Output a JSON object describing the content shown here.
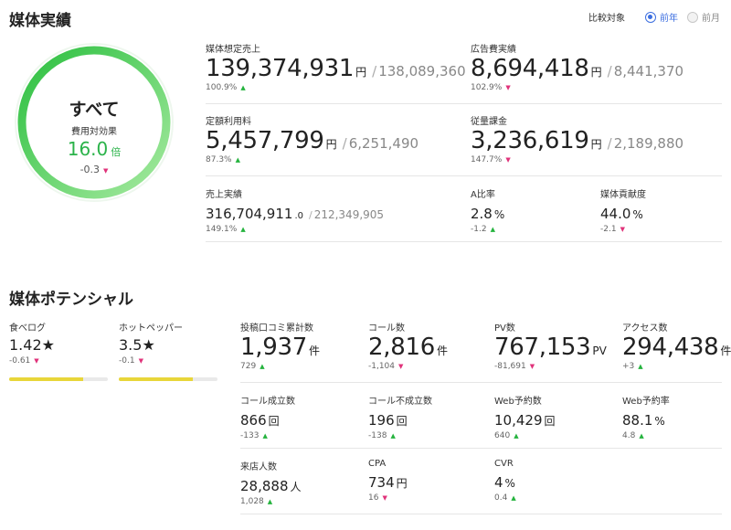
{
  "header": {
    "title": "媒体実績",
    "compare_label": "比較対象",
    "options": [
      {
        "label": "前年",
        "selected": true
      },
      {
        "label": "前月",
        "selected": false
      }
    ]
  },
  "summary": {
    "title": "すべて",
    "subtitle": "費用対効果",
    "value": "16.0",
    "unit": "倍",
    "delta": "-0.3",
    "delta_dir": "down",
    "ring_color_start": "#2bbf3f",
    "ring_color_end": "#a6eaa0"
  },
  "metrics": {
    "media_sales": {
      "label": "媒体想定売上",
      "value": "139,374,931",
      "unit": "円",
      "compare": "138,089,360",
      "delta": "100.9%",
      "dir": "up"
    },
    "ad_cost": {
      "label": "広告費実績",
      "value": "8,694,418",
      "unit": "円",
      "compare": "8,441,370",
      "delta": "102.9%",
      "dir": "down"
    },
    "fixed_fee": {
      "label": "定額利用料",
      "value": "5,457,799",
      "unit": "円",
      "compare": "6,251,490",
      "delta": "87.3%",
      "dir": "up"
    },
    "pay_per": {
      "label": "従量課金",
      "value": "3,236,619",
      "unit": "円",
      "compare": "2,189,880",
      "delta": "147.7%",
      "dir": "down"
    },
    "sales": {
      "label": "売上実績",
      "value": "316,704,911",
      "unit": ".0",
      "compare": "212,349,905",
      "delta": "149.1%",
      "dir": "up"
    },
    "a_ratio": {
      "label": "A比率",
      "value": "2.8",
      "unit": "%",
      "delta": "-1.2",
      "dir": "up"
    },
    "contribution": {
      "label": "媒体貢献度",
      "value": "44.0",
      "unit": "%",
      "delta": "-2.1",
      "dir": "down"
    }
  },
  "potential": {
    "title": "媒体ポテンシャル",
    "ratings": [
      {
        "label": "食べログ",
        "value": "1.42★",
        "delta": "-0.61",
        "dir": "down",
        "fill": 0.75
      },
      {
        "label": "ホットペッパー",
        "value": "3.5★",
        "delta": "-0.1",
        "dir": "down",
        "fill": 0.75
      }
    ],
    "bar_color": "#e8d63a",
    "big": [
      {
        "label": "投稿口コミ累計数",
        "value": "1,937",
        "unit": "件",
        "delta": "729",
        "dir": "up"
      },
      {
        "label": "コール数",
        "value": "2,816",
        "unit": "件",
        "delta": "-1,104",
        "dir": "down"
      },
      {
        "label": "PV数",
        "value": "767,153",
        "unit": "PV",
        "delta": "-81,691",
        "dir": "down"
      },
      {
        "label": "アクセス数",
        "value": "294,438",
        "unit": "件",
        "delta": "+3",
        "dir": "up"
      }
    ],
    "row2": [
      {
        "label": "コール成立数",
        "value": "866",
        "unit": "回",
        "delta": "-133",
        "dir": "up"
      },
      {
        "label": "コール不成立数",
        "value": "196",
        "unit": "回",
        "delta": "-138",
        "dir": "up"
      },
      {
        "label": "Web予約数",
        "value": "10,429",
        "unit": "回",
        "delta": "640",
        "dir": "up"
      },
      {
        "label": "Web予約率",
        "value": "88.1",
        "unit": "%",
        "delta": "4.8",
        "dir": "up"
      }
    ],
    "row3": [
      {
        "label": "来店人数",
        "value": "28,888",
        "unit": "人",
        "delta": "1,028",
        "dir": "up"
      },
      {
        "label": "CPA",
        "value": "734",
        "unit": "円",
        "delta": "16",
        "dir": "down"
      },
      {
        "label": "CVR",
        "value": "4",
        "unit": "%",
        "delta": "0.4",
        "dir": "up"
      }
    ]
  }
}
